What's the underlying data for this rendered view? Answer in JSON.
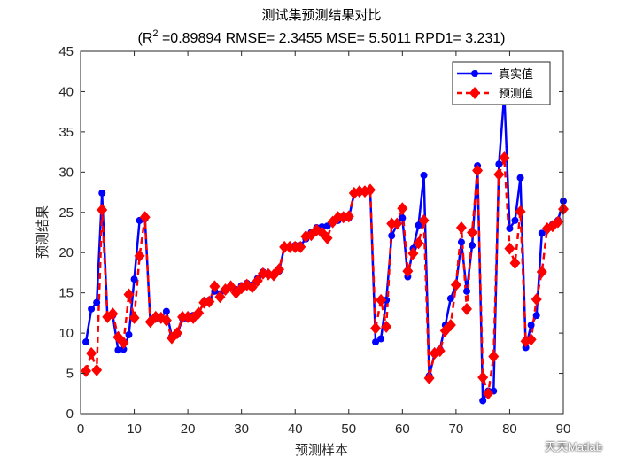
{
  "watermark": "天天Matlab",
  "chart_data": {
    "type": "line",
    "title": "测试集预测结果对比",
    "subtitle": {
      "prefix": "(R",
      "sup": "2",
      "rest": " =0.89894 RMSE= 2.3455 MSE= 5.5011 RPD1= 3.231)"
    },
    "xlabel": "预测样本",
    "ylabel": "预测结果",
    "xlim": [
      0,
      90
    ],
    "ylim": [
      0,
      45
    ],
    "xticks": [
      0,
      10,
      20,
      30,
      40,
      50,
      60,
      70,
      80,
      90
    ],
    "yticks": [
      0,
      5,
      10,
      15,
      20,
      25,
      30,
      35,
      40,
      45
    ],
    "legend_position": "top-right",
    "colors": {
      "true": "#0000ff",
      "pred": "#ff0000"
    },
    "x": [
      1,
      2,
      3,
      4,
      5,
      6,
      7,
      8,
      9,
      10,
      11,
      12,
      13,
      14,
      15,
      16,
      17,
      18,
      19,
      20,
      21,
      22,
      23,
      24,
      25,
      26,
      27,
      28,
      29,
      30,
      31,
      32,
      33,
      34,
      35,
      36,
      37,
      38,
      39,
      40,
      41,
      42,
      43,
      44,
      45,
      46,
      47,
      48,
      49,
      50,
      51,
      52,
      53,
      54,
      55,
      56,
      57,
      58,
      59,
      60,
      61,
      62,
      63,
      64,
      65,
      66,
      67,
      68,
      69,
      70,
      71,
      72,
      73,
      74,
      75,
      76,
      77,
      78,
      79,
      80,
      81,
      82,
      83,
      84,
      85,
      86,
      87,
      88,
      89,
      90
    ],
    "series": [
      {
        "name": "真实值",
        "key": "true",
        "values": [
          8.9,
          13.0,
          13.8,
          27.4,
          12.0,
          12.2,
          7.9,
          8.0,
          9.8,
          16.7,
          24.0,
          24.2,
          11.4,
          11.8,
          12.0,
          12.7,
          9.6,
          9.8,
          11.8,
          11.8,
          12.2,
          12.5,
          13.8,
          14.1,
          15.2,
          14.9,
          15.3,
          15.7,
          15.4,
          15.9,
          16.2,
          16.0,
          16.8,
          17.6,
          17.2,
          17.3,
          17.7,
          20.7,
          20.8,
          20.9,
          20.9,
          21.7,
          22.5,
          23.1,
          23.2,
          23.3,
          23.7,
          24.0,
          24.5,
          24.3,
          27.3,
          27.5,
          27.6,
          27.7,
          8.9,
          9.3,
          14.1,
          22.1,
          23.5,
          24.3,
          17.0,
          20.5,
          23.4,
          29.6,
          4.7,
          7.4,
          8.0,
          11.0,
          14.3,
          16.0,
          21.3,
          15.2,
          20.9,
          30.8,
          1.6,
          2.8,
          2.8,
          31.0,
          39.7,
          23.0,
          24.0,
          29.3,
          8.2,
          11.0,
          12.2,
          22.4,
          23.0,
          23.5,
          24.0,
          26.4
        ]
      },
      {
        "name": "预测值",
        "key": "pred",
        "values": [
          5.3,
          7.5,
          5.4,
          25.3,
          12.0,
          12.4,
          9.5,
          8.8,
          14.8,
          11.9,
          19.6,
          24.4,
          11.4,
          12.0,
          11.9,
          11.6,
          9.4,
          10.0,
          12.0,
          12.0,
          11.9,
          12.5,
          13.8,
          13.9,
          15.8,
          14.5,
          15.4,
          15.8,
          15.0,
          15.6,
          16.0,
          15.7,
          16.5,
          17.4,
          17.3,
          17.2,
          17.9,
          20.7,
          20.7,
          20.7,
          20.7,
          22.0,
          22.2,
          22.8,
          22.5,
          21.8,
          23.8,
          24.4,
          24.4,
          24.5,
          27.4,
          27.6,
          27.6,
          27.8,
          10.6,
          14.1,
          10.8,
          23.6,
          23.6,
          25.5,
          17.7,
          19.9,
          21.2,
          24.0,
          4.4,
          7.5,
          7.8,
          10.3,
          11.0,
          16.0,
          23.1,
          13.0,
          22.5,
          30.2,
          4.5,
          2.5,
          7.1,
          29.7,
          31.8,
          20.5,
          18.7,
          25.1,
          9.0,
          9.2,
          14.2,
          17.6,
          23.0,
          23.3,
          23.8,
          25.4
        ]
      }
    ]
  }
}
